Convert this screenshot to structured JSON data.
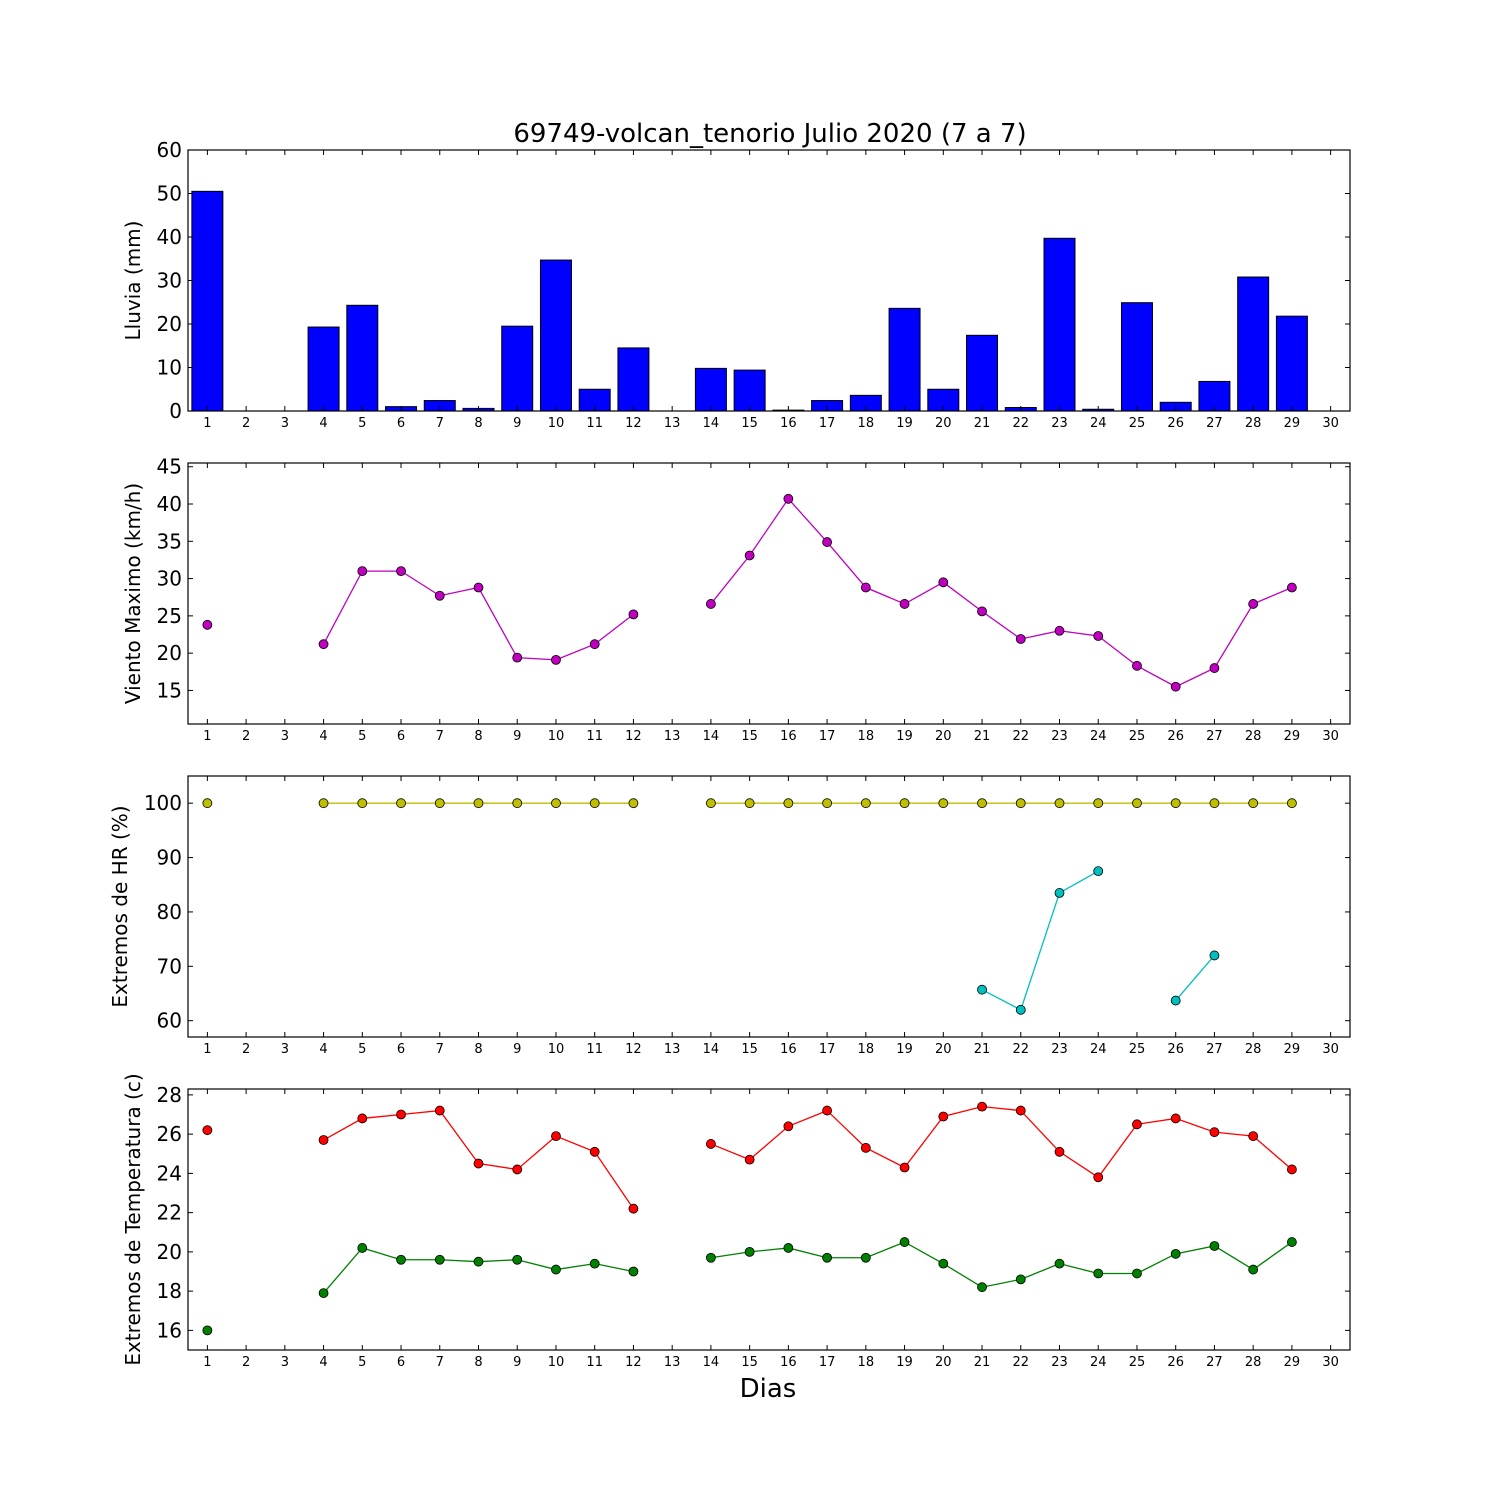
{
  "title": "69749-volcan_tenorio Julio 2020  (7 a 7)",
  "xlabel": "Dias",
  "colors": {
    "rain": "#0000ff",
    "wind": "#bf00bf",
    "hr_max": "#bfbf00",
    "hr_min": "#00bfbf",
    "temp_max": "#ff0000",
    "temp_min": "#008000"
  },
  "chart_data": [
    {
      "type": "bar",
      "ylabel": "Lluvia (mm)",
      "xlim": [
        0.5,
        30.5
      ],
      "ylim": [
        0,
        60
      ],
      "yticks": [
        0,
        10,
        20,
        30,
        40,
        50,
        60
      ],
      "xticks": [
        1,
        2,
        3,
        4,
        5,
        6,
        7,
        8,
        9,
        10,
        11,
        12,
        13,
        14,
        15,
        16,
        17,
        18,
        19,
        20,
        21,
        22,
        23,
        24,
        25,
        26,
        27,
        28,
        29,
        30
      ],
      "categories": [
        1,
        2,
        3,
        4,
        5,
        6,
        7,
        8,
        9,
        10,
        11,
        12,
        13,
        14,
        15,
        16,
        17,
        18,
        19,
        20,
        21,
        22,
        23,
        24,
        25,
        26,
        27,
        28,
        29
      ],
      "values": [
        50.5,
        0,
        0,
        19.3,
        24.3,
        1.0,
        2.4,
        0.6,
        19.5,
        34.7,
        5.0,
        14.5,
        0,
        9.8,
        9.4,
        0.2,
        2.4,
        3.6,
        23.6,
        5.0,
        17.4,
        0.8,
        39.7,
        0.4,
        24.9,
        2.0,
        6.8,
        30.8,
        21.8
      ],
      "color": "#0000ff"
    },
    {
      "type": "line",
      "ylabel": "Viento Maximo (km/h)",
      "xlim": [
        0.5,
        30.5
      ],
      "ylim": [
        10.5,
        45.5
      ],
      "yticks": [
        15,
        20,
        25,
        30,
        35,
        40,
        45
      ],
      "xticks": [
        1,
        2,
        3,
        4,
        5,
        6,
        7,
        8,
        9,
        10,
        11,
        12,
        13,
        14,
        15,
        16,
        17,
        18,
        19,
        20,
        21,
        22,
        23,
        24,
        25,
        26,
        27,
        28,
        29,
        30
      ],
      "series": [
        {
          "x": [
            1,
            2,
            3,
            4,
            5,
            6,
            7,
            8,
            9,
            10,
            11,
            12,
            13,
            14,
            15,
            16,
            17,
            18,
            19,
            20,
            21,
            22,
            23,
            24,
            25,
            26,
            27,
            28,
            29
          ],
          "y": [
            23.8,
            null,
            null,
            21.2,
            31.0,
            31.0,
            27.7,
            28.8,
            19.4,
            19.1,
            21.2,
            25.2,
            null,
            26.6,
            33.1,
            40.7,
            34.9,
            28.8,
            26.6,
            29.5,
            25.6,
            21.9,
            23.0,
            22.3,
            18.3,
            15.5,
            18.0,
            26.6,
            28.8
          ],
          "color": "#bf00bf"
        }
      ]
    },
    {
      "type": "line",
      "ylabel": "Extremos de HR (%)",
      "xlim": [
        0.5,
        30.5
      ],
      "ylim": [
        57,
        105
      ],
      "yticks": [
        60,
        70,
        80,
        90,
        100
      ],
      "xticks": [
        1,
        2,
        3,
        4,
        5,
        6,
        7,
        8,
        9,
        10,
        11,
        12,
        13,
        14,
        15,
        16,
        17,
        18,
        19,
        20,
        21,
        22,
        23,
        24,
        25,
        26,
        27,
        28,
        29,
        30
      ],
      "series": [
        {
          "x": [
            1,
            2,
            3,
            4,
            5,
            6,
            7,
            8,
            9,
            10,
            11,
            12,
            13,
            14,
            15,
            16,
            17,
            18,
            19,
            20,
            21,
            22,
            23,
            24,
            25,
            26,
            27,
            28,
            29
          ],
          "y": [
            100,
            null,
            null,
            100,
            100,
            100,
            100,
            100,
            100,
            100,
            100,
            100,
            null,
            100,
            100,
            100,
            100,
            100,
            100,
            100,
            100,
            100,
            100,
            100,
            100,
            100,
            100,
            100,
            100
          ],
          "color": "#bfbf00"
        },
        {
          "x": [
            21,
            22,
            23,
            24,
            25,
            26,
            27
          ],
          "y": [
            65.7,
            62.0,
            83.5,
            87.5,
            null,
            63.7,
            72.0
          ],
          "color": "#00bfbf"
        }
      ]
    },
    {
      "type": "line",
      "ylabel": "Extremos de Temperatura (c)",
      "xlim": [
        0.5,
        30.5
      ],
      "ylim": [
        15,
        28.3
      ],
      "yticks": [
        16,
        18,
        20,
        22,
        24,
        26,
        28
      ],
      "xticks": [
        1,
        2,
        3,
        4,
        5,
        6,
        7,
        8,
        9,
        10,
        11,
        12,
        13,
        14,
        15,
        16,
        17,
        18,
        19,
        20,
        21,
        22,
        23,
        24,
        25,
        26,
        27,
        28,
        29,
        30
      ],
      "series": [
        {
          "x": [
            1,
            2,
            3,
            4,
            5,
            6,
            7,
            8,
            9,
            10,
            11,
            12,
            13,
            14,
            15,
            16,
            17,
            18,
            19,
            20,
            21,
            22,
            23,
            24,
            25,
            26,
            27,
            28,
            29
          ],
          "y": [
            26.2,
            null,
            null,
            25.7,
            26.8,
            27.0,
            27.2,
            24.5,
            24.2,
            25.9,
            25.1,
            22.2,
            null,
            25.5,
            24.7,
            26.4,
            27.2,
            25.3,
            24.3,
            26.9,
            27.4,
            27.2,
            25.1,
            23.8,
            26.5,
            26.8,
            26.1,
            25.9,
            24.2
          ],
          "color": "#ff0000"
        },
        {
          "x": [
            1,
            2,
            3,
            4,
            5,
            6,
            7,
            8,
            9,
            10,
            11,
            12,
            13,
            14,
            15,
            16,
            17,
            18,
            19,
            20,
            21,
            22,
            23,
            24,
            25,
            26,
            27,
            28,
            29
          ],
          "y": [
            16.0,
            null,
            null,
            17.9,
            20.2,
            19.6,
            19.6,
            19.5,
            19.6,
            19.1,
            19.4,
            19.0,
            null,
            19.7,
            20.0,
            20.2,
            19.7,
            19.7,
            20.5,
            19.4,
            18.2,
            18.6,
            19.4,
            18.9,
            18.9,
            19.9,
            20.3,
            19.1,
            20.5
          ],
          "color": "#008000"
        }
      ]
    }
  ]
}
